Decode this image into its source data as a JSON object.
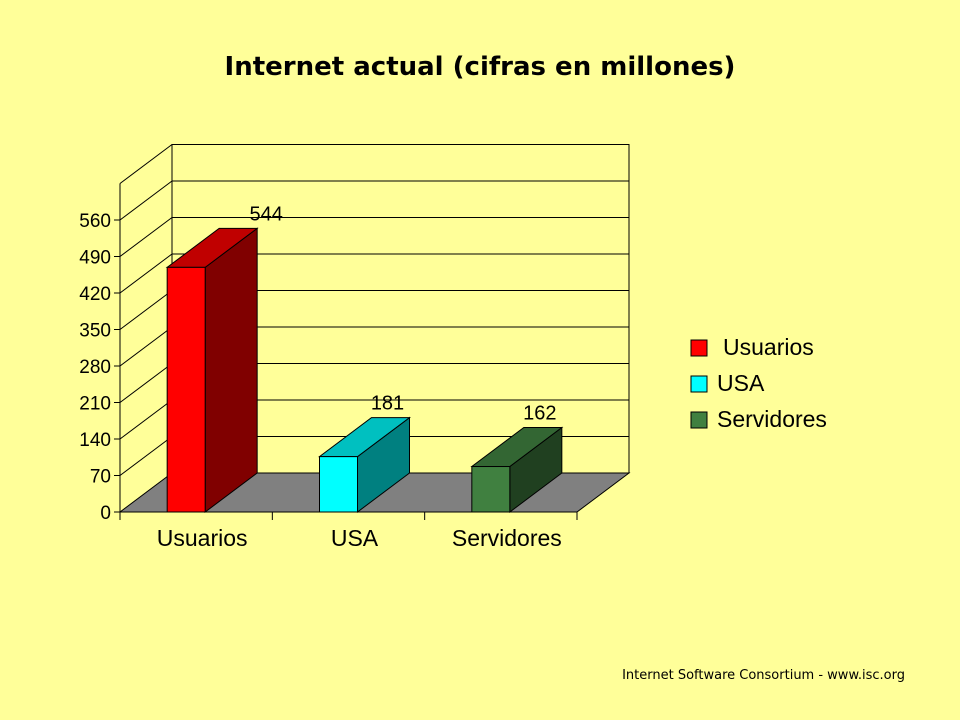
{
  "slide": {
    "title": "Internet actual (cifras en millones)",
    "footer": "Internet Software Consortium - www.isc.org"
  },
  "chart_data": {
    "type": "bar",
    "title": "Internet actual (cifras en millones)",
    "categories": [
      "Usuarios",
      "USA",
      "Servidores"
    ],
    "values": [
      544,
      181,
      162
    ],
    "data_labels": [
      "544",
      "181",
      "162"
    ],
    "ylim": [
      0,
      630
    ],
    "yticks": [
      0,
      70,
      140,
      210,
      280,
      350,
      420,
      490,
      560
    ],
    "grid": true,
    "three_d": true,
    "legend_position": "right",
    "legend": [
      "Usuarios",
      "USA",
      "Servidores"
    ],
    "colors": [
      {
        "front": "#FF0000",
        "side": "#800000",
        "top": "#C00000"
      },
      {
        "front": "#00FFFF",
        "side": "#008080",
        "top": "#00C0C0"
      },
      {
        "front": "#408040",
        "side": "#204020",
        "top": "#336633"
      }
    ],
    "floor_color": "#808080"
  }
}
